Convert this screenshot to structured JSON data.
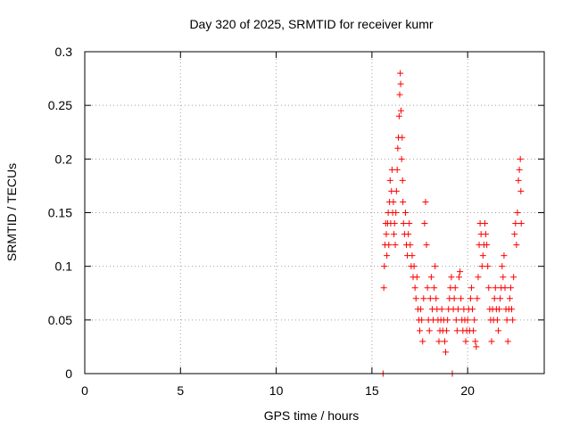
{
  "chart_data": {
    "type": "scatter",
    "title": "Day 320 of 2025, SRMTID for receiver kumr",
    "xlabel": "GPS time / hours",
    "ylabel": "SRMTID / TECUs",
    "xlim": [
      0,
      24
    ],
    "ylim": [
      0,
      0.3
    ],
    "xticks": [
      0,
      5,
      10,
      15,
      20
    ],
    "xtick_labels": [
      "0",
      "5",
      "10",
      "15",
      "20"
    ],
    "yticks": [
      0,
      0.05,
      0.1,
      0.15,
      0.2,
      0.25,
      0.3
    ],
    "ytick_labels": [
      "0",
      "0.05",
      "0.1",
      "0.15",
      "0.2",
      "0.25",
      "0.3"
    ],
    "grid": true,
    "marker": "+",
    "color": "#ff0000",
    "series": [
      {
        "name": "SRMTID",
        "points": [
          [
            15.58,
            0.0
          ],
          [
            15.62,
            0.08
          ],
          [
            15.65,
            0.1
          ],
          [
            15.68,
            0.12
          ],
          [
            15.72,
            0.14
          ],
          [
            15.75,
            0.13
          ],
          [
            15.78,
            0.11
          ],
          [
            15.82,
            0.14
          ],
          [
            15.85,
            0.15
          ],
          [
            15.88,
            0.12
          ],
          [
            15.92,
            0.16
          ],
          [
            15.95,
            0.18
          ],
          [
            15.98,
            0.14
          ],
          [
            16.02,
            0.17
          ],
          [
            16.05,
            0.19
          ],
          [
            16.08,
            0.15
          ],
          [
            16.12,
            0.16
          ],
          [
            16.15,
            0.13
          ],
          [
            16.18,
            0.14
          ],
          [
            16.22,
            0.12
          ],
          [
            16.25,
            0.15
          ],
          [
            16.28,
            0.17
          ],
          [
            16.32,
            0.19
          ],
          [
            16.35,
            0.21
          ],
          [
            16.38,
            0.22
          ],
          [
            16.42,
            0.24
          ],
          [
            16.45,
            0.26
          ],
          [
            16.48,
            0.28
          ],
          [
            16.5,
            0.27
          ],
          [
            16.52,
            0.245
          ],
          [
            16.55,
            0.2
          ],
          [
            16.58,
            0.22
          ],
          [
            16.6,
            0.18
          ],
          [
            16.62,
            0.16
          ],
          [
            16.65,
            0.14
          ],
          [
            16.7,
            0.13
          ],
          [
            16.75,
            0.15
          ],
          [
            16.8,
            0.12
          ],
          [
            16.85,
            0.11
          ],
          [
            16.9,
            0.13
          ],
          [
            16.95,
            0.14
          ],
          [
            17.0,
            0.12
          ],
          [
            17.05,
            0.1
          ],
          [
            17.1,
            0.11
          ],
          [
            17.15,
            0.09
          ],
          [
            17.2,
            0.1
          ],
          [
            17.25,
            0.08
          ],
          [
            17.3,
            0.07
          ],
          [
            17.35,
            0.09
          ],
          [
            17.4,
            0.06
          ],
          [
            17.45,
            0.05
          ],
          [
            17.5,
            0.04
          ],
          [
            17.55,
            0.06
          ],
          [
            17.6,
            0.05
          ],
          [
            17.65,
            0.03
          ],
          [
            17.7,
            0.07
          ],
          [
            17.75,
            0.14
          ],
          [
            17.8,
            0.16
          ],
          [
            17.85,
            0.12
          ],
          [
            17.9,
            0.08
          ],
          [
            17.95,
            0.05
          ],
          [
            18.0,
            0.04
          ],
          [
            18.05,
            0.07
          ],
          [
            18.1,
            0.09
          ],
          [
            18.15,
            0.06
          ],
          [
            18.2,
            0.05
          ],
          [
            18.25,
            0.08
          ],
          [
            18.3,
            0.1
          ],
          [
            18.35,
            0.07
          ],
          [
            18.4,
            0.06
          ],
          [
            18.45,
            0.05
          ],
          [
            18.5,
            0.03
          ],
          [
            18.55,
            0.04
          ],
          [
            18.6,
            0.05
          ],
          [
            18.65,
            0.06
          ],
          [
            18.7,
            0.04
          ],
          [
            18.75,
            0.05
          ],
          [
            18.8,
            0.03
          ],
          [
            18.85,
            0.02
          ],
          [
            18.9,
            0.04
          ],
          [
            18.95,
            0.05
          ],
          [
            19.0,
            0.06
          ],
          [
            19.05,
            0.07
          ],
          [
            19.1,
            0.08
          ],
          [
            19.15,
            0.09
          ],
          [
            19.2,
            0.0
          ],
          [
            19.25,
            0.06
          ],
          [
            19.3,
            0.07
          ],
          [
            19.35,
            0.08
          ],
          [
            19.4,
            0.05
          ],
          [
            19.45,
            0.04
          ],
          [
            19.5,
            0.06
          ],
          [
            19.55,
            0.09
          ],
          [
            19.6,
            0.095
          ],
          [
            19.65,
            0.07
          ],
          [
            19.7,
            0.05
          ],
          [
            19.75,
            0.04
          ],
          [
            19.8,
            0.06
          ],
          [
            19.85,
            0.05
          ],
          [
            19.9,
            0.03
          ],
          [
            19.95,
            0.04
          ],
          [
            20.0,
            0.05
          ],
          [
            20.05,
            0.06
          ],
          [
            20.1,
            0.04
          ],
          [
            20.15,
            0.07
          ],
          [
            20.2,
            0.08
          ],
          [
            20.25,
            0.06
          ],
          [
            20.3,
            0.04
          ],
          [
            20.35,
            0.05
          ],
          [
            20.4,
            0.03
          ],
          [
            20.45,
            0.025
          ],
          [
            20.5,
            0.07
          ],
          [
            20.55,
            0.09
          ],
          [
            20.6,
            0.12
          ],
          [
            20.65,
            0.14
          ],
          [
            20.7,
            0.13
          ],
          [
            20.75,
            0.1
          ],
          [
            20.8,
            0.11
          ],
          [
            20.85,
            0.12
          ],
          [
            20.9,
            0.14
          ],
          [
            20.95,
            0.13
          ],
          [
            21.0,
            0.12
          ],
          [
            21.05,
            0.1
          ],
          [
            21.1,
            0.08
          ],
          [
            21.15,
            0.06
          ],
          [
            21.2,
            0.05
          ],
          [
            21.25,
            0.03
          ],
          [
            21.3,
            0.06
          ],
          [
            21.35,
            0.05
          ],
          [
            21.4,
            0.07
          ],
          [
            21.45,
            0.08
          ],
          [
            21.5,
            0.06
          ],
          [
            21.55,
            0.05
          ],
          [
            21.6,
            0.04
          ],
          [
            21.65,
            0.06
          ],
          [
            21.7,
            0.07
          ],
          [
            21.75,
            0.08
          ],
          [
            21.8,
            0.1
          ],
          [
            21.85,
            0.09
          ],
          [
            21.9,
            0.11
          ],
          [
            21.95,
            0.08
          ],
          [
            22.0,
            0.06
          ],
          [
            22.05,
            0.05
          ],
          [
            22.1,
            0.03
          ],
          [
            22.15,
            0.06
          ],
          [
            22.2,
            0.07
          ],
          [
            22.25,
            0.08
          ],
          [
            22.3,
            0.06
          ],
          [
            22.35,
            0.05
          ],
          [
            22.4,
            0.09
          ],
          [
            22.45,
            0.13
          ],
          [
            22.5,
            0.14
          ],
          [
            22.55,
            0.12
          ],
          [
            22.6,
            0.15
          ],
          [
            22.65,
            0.18
          ],
          [
            22.7,
            0.19
          ],
          [
            22.75,
            0.2
          ],
          [
            22.78,
            0.17
          ],
          [
            22.8,
            0.14
          ]
        ]
      }
    ]
  }
}
